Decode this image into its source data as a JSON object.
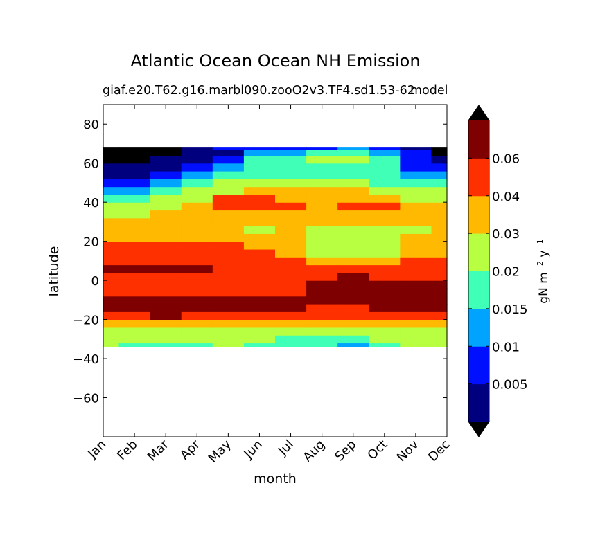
{
  "chart_data": {
    "type": "heatmap",
    "title": "Atlantic Ocean Ocean NH Emission",
    "subtitle_left": "giaf.e20.T62.g16.marbl090.zooO2v3.TF4.sd1.53-62",
    "subtitle_right": "model",
    "xlabel": "month",
    "ylabel": "latitude",
    "x_categories": [
      "Jan",
      "Feb",
      "Mar",
      "Apr",
      "May",
      "Jun",
      "Jul",
      "Aug",
      "Sep",
      "Oct",
      "Nov",
      "Dec"
    ],
    "y_ticks": [
      -60,
      -40,
      -20,
      0,
      20,
      40,
      60,
      80
    ],
    "ylim": [
      -80,
      90
    ],
    "data_lat_range": [
      -34,
      68
    ],
    "colorbar": {
      "label": "gN m",
      "label_exp1": "−2",
      "label_mid": " y",
      "label_exp2": "−1",
      "extend": "both",
      "levels": [
        0.001,
        0.005,
        0.01,
        0.015,
        0.02,
        0.03,
        0.04,
        0.06,
        0.08
      ],
      "tick_labels": [
        "0.005",
        "0.01",
        "0.015",
        "0.02",
        "0.03",
        "0.04",
        "0.06"
      ],
      "colors": [
        "#00007f",
        "#0010ff",
        "#00a4ff",
        "#40ffb7",
        "#b7ff40",
        "#ffb900",
        "#ff3000",
        "#7f0000"
      ],
      "under_color": "#000000",
      "over_color": "#000000"
    },
    "latitudes": [
      -34,
      -30,
      -26,
      -22,
      -18,
      -14,
      -10,
      -6,
      -2,
      2,
      6,
      10,
      14,
      18,
      22,
      26,
      30,
      34,
      38,
      42,
      46,
      50,
      54,
      58,
      62,
      66,
      68
    ],
    "series": [
      {
        "month": "Jan",
        "values": [
          0.025,
          0.025,
          0.025,
          0.035,
          0.05,
          0.065,
          0.065,
          0.05,
          0.045,
          0.05,
          0.065,
          0.05,
          0.05,
          0.045,
          0.035,
          0.035,
          0.035,
          0.025,
          0.02,
          0.015,
          0.01,
          0.007,
          0.004,
          0.002,
          0.0008,
          0.0006,
          0.0006
        ]
      },
      {
        "month": "Feb",
        "values": [
          0.018,
          0.025,
          0.025,
          0.035,
          0.05,
          0.065,
          0.065,
          0.05,
          0.045,
          0.05,
          0.065,
          0.05,
          0.05,
          0.045,
          0.035,
          0.035,
          0.035,
          0.025,
          0.02,
          0.015,
          0.01,
          0.007,
          0.004,
          0.002,
          0.0008,
          0.0006,
          0.0006
        ]
      },
      {
        "month": "Mar",
        "values": [
          0.018,
          0.025,
          0.025,
          0.035,
          0.065,
          0.065,
          0.065,
          0.05,
          0.045,
          0.05,
          0.065,
          0.05,
          0.05,
          0.045,
          0.035,
          0.035,
          0.035,
          0.035,
          0.025,
          0.02,
          0.015,
          0.012,
          0.007,
          0.004,
          0.0035,
          0.0008,
          0.0006
        ]
      },
      {
        "month": "Apr",
        "values": [
          0.018,
          0.025,
          0.025,
          0.035,
          0.05,
          0.065,
          0.065,
          0.05,
          0.045,
          0.05,
          0.065,
          0.05,
          0.05,
          0.045,
          0.035,
          0.035,
          0.035,
          0.035,
          0.035,
          0.025,
          0.02,
          0.015,
          0.012,
          0.008,
          0.004,
          0.003,
          0.004
        ]
      },
      {
        "month": "May",
        "values": [
          0.025,
          0.025,
          0.025,
          0.035,
          0.05,
          0.065,
          0.065,
          0.05,
          0.045,
          0.05,
          0.05,
          0.05,
          0.05,
          0.045,
          0.035,
          0.035,
          0.035,
          0.035,
          0.045,
          0.045,
          0.025,
          0.02,
          0.015,
          0.012,
          0.008,
          0.004,
          0.007
        ]
      },
      {
        "month": "Jun",
        "values": [
          0.018,
          0.025,
          0.025,
          0.035,
          0.05,
          0.065,
          0.065,
          0.05,
          0.045,
          0.05,
          0.05,
          0.05,
          0.045,
          0.035,
          0.035,
          0.025,
          0.035,
          0.035,
          0.045,
          0.045,
          0.035,
          0.02,
          0.015,
          0.017,
          0.017,
          0.012,
          0.008
        ]
      },
      {
        "month": "Jul",
        "values": [
          0.018,
          0.018,
          0.025,
          0.035,
          0.05,
          0.065,
          0.065,
          0.05,
          0.045,
          0.05,
          0.05,
          0.045,
          0.035,
          0.035,
          0.035,
          0.035,
          0.035,
          0.035,
          0.045,
          0.035,
          0.035,
          0.02,
          0.017,
          0.017,
          0.018,
          0.012,
          0.008
        ]
      },
      {
        "month": "Aug",
        "values": [
          0.018,
          0.018,
          0.025,
          0.035,
          0.045,
          0.05,
          0.065,
          0.065,
          0.065,
          0.05,
          0.045,
          0.035,
          0.025,
          0.025,
          0.025,
          0.025,
          0.035,
          0.035,
          0.035,
          0.035,
          0.035,
          0.02,
          0.017,
          0.018,
          0.022,
          0.018,
          0.008
        ]
      },
      {
        "month": "Sep",
        "values": [
          0.012,
          0.018,
          0.025,
          0.035,
          0.045,
          0.05,
          0.065,
          0.065,
          0.065,
          0.065,
          0.05,
          0.035,
          0.025,
          0.025,
          0.025,
          0.025,
          0.035,
          0.035,
          0.045,
          0.035,
          0.035,
          0.02,
          0.017,
          0.018,
          0.022,
          0.017,
          0.012
        ]
      },
      {
        "month": "Oct",
        "values": [
          0.018,
          0.025,
          0.025,
          0.035,
          0.045,
          0.065,
          0.065,
          0.065,
          0.065,
          0.05,
          0.045,
          0.035,
          0.025,
          0.025,
          0.025,
          0.025,
          0.035,
          0.035,
          0.045,
          0.035,
          0.025,
          0.018,
          0.015,
          0.017,
          0.017,
          0.012,
          0.008
        ]
      },
      {
        "month": "Nov",
        "values": [
          0.025,
          0.025,
          0.025,
          0.035,
          0.05,
          0.065,
          0.065,
          0.065,
          0.065,
          0.05,
          0.045,
          0.045,
          0.035,
          0.035,
          0.035,
          0.025,
          0.035,
          0.035,
          0.035,
          0.025,
          0.02,
          0.015,
          0.012,
          0.008,
          0.006,
          0.006,
          0.004
        ]
      },
      {
        "month": "Dec",
        "values": [
          0.025,
          0.025,
          0.025,
          0.035,
          0.05,
          0.065,
          0.065,
          0.065,
          0.065,
          0.05,
          0.045,
          0.045,
          0.035,
          0.035,
          0.035,
          0.035,
          0.035,
          0.035,
          0.035,
          0.025,
          0.02,
          0.015,
          0.01,
          0.006,
          0.003,
          0.0008,
          0.0006
        ]
      }
    ]
  }
}
